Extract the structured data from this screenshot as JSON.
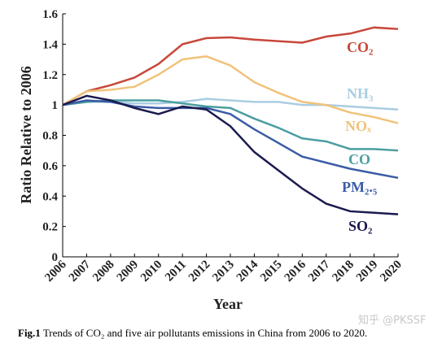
{
  "chart_data": {
    "type": "line",
    "x_label": "Year",
    "y_label": "Ratio Relative to 2006",
    "x": [
      2006,
      2007,
      2008,
      2009,
      2010,
      2011,
      2012,
      2013,
      2014,
      2015,
      2016,
      2017,
      2018,
      2019,
      2020
    ],
    "xlim": [
      2006,
      2020
    ],
    "xticks": [
      2006,
      2007,
      2008,
      2009,
      2010,
      2011,
      2012,
      2013,
      2014,
      2015,
      2016,
      2017,
      2018,
      2019,
      2020
    ],
    "ylim": [
      0,
      1.6
    ],
    "yticks": [
      0,
      0.2,
      0.4,
      0.6,
      0.8,
      1,
      1.2,
      1.4,
      1.6
    ],
    "series": [
      {
        "name": "CO₂",
        "color": "#c8473a",
        "values": [
          1.0,
          1.09,
          1.13,
          1.18,
          1.27,
          1.4,
          1.44,
          1.445,
          1.43,
          1.42,
          1.41,
          1.45,
          1.47,
          1.51,
          1.5
        ]
      },
      {
        "name": "NH₃",
        "color": "#a9cde2",
        "values": [
          1.0,
          1.02,
          1.02,
          1.01,
          1.01,
          1.02,
          1.04,
          1.03,
          1.02,
          1.02,
          1.0,
          1.0,
          0.99,
          0.98,
          0.97
        ]
      },
      {
        "name": "NOₓ",
        "color": "#f1c27a",
        "values": [
          1.0,
          1.09,
          1.1,
          1.12,
          1.2,
          1.3,
          1.32,
          1.26,
          1.15,
          1.08,
          1.02,
          1.0,
          0.95,
          0.92,
          0.88
        ]
      },
      {
        "name": "CO",
        "color": "#4b9ea1",
        "values": [
          1.0,
          1.02,
          1.03,
          1.03,
          1.03,
          1.01,
          0.99,
          0.98,
          0.91,
          0.85,
          0.78,
          0.76,
          0.71,
          0.71,
          0.7
        ]
      },
      {
        "name": "PM₂.₅",
        "color": "#3b5ca6",
        "values": [
          1.0,
          1.03,
          1.02,
          0.99,
          0.98,
          0.98,
          0.98,
          0.94,
          0.84,
          0.75,
          0.66,
          0.62,
          0.58,
          0.55,
          0.52
        ]
      },
      {
        "name": "SO₂",
        "color": "#1b1a4f",
        "values": [
          1.0,
          1.06,
          1.03,
          0.98,
          0.94,
          0.99,
          0.97,
          0.86,
          0.69,
          0.57,
          0.45,
          0.35,
          0.3,
          0.29,
          0.28
        ]
      }
    ]
  },
  "caption": {
    "label": "Fig.1",
    "text": "Trends of CO₂ and five air pollutants emissions in China from 2006 to 2020."
  },
  "watermark": "知乎 @PKSSF"
}
